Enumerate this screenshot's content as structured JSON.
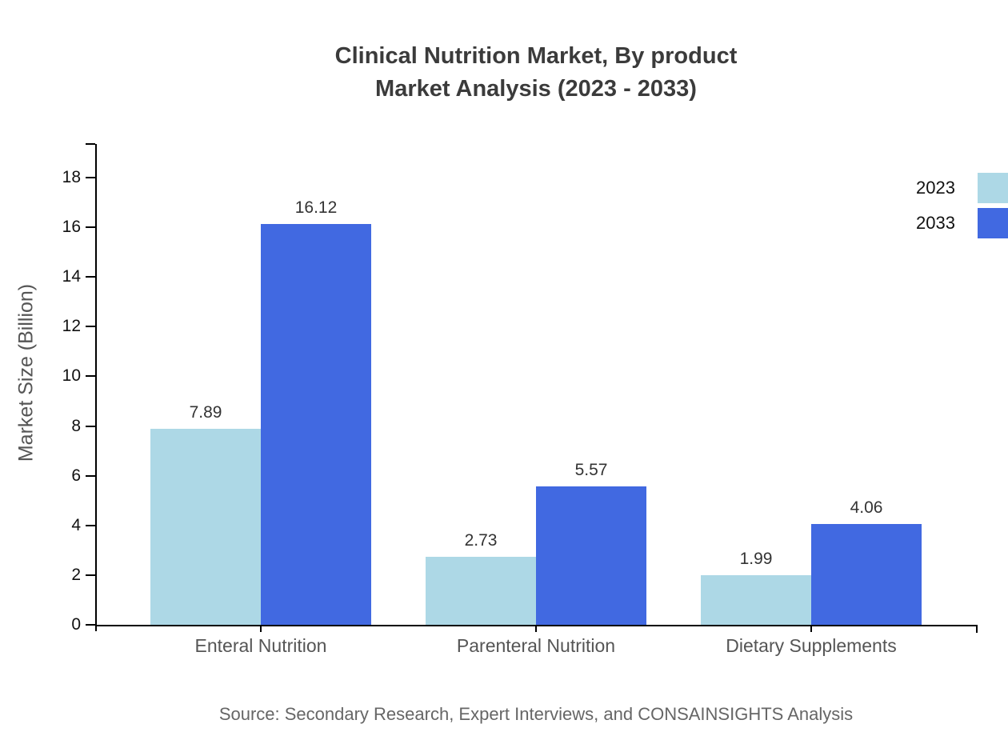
{
  "title": {
    "line1": "Clinical Nutrition Market, By product",
    "line2": "Market Analysis (2023 - 2033)"
  },
  "source": "Source: Secondary Research, Expert Interviews, and CONSAINSIGHTS Analysis",
  "chart_data": {
    "type": "bar",
    "title": "Clinical Nutrition Market, By product Market Analysis (2023 - 2033)",
    "categories": [
      "Enteral Nutrition",
      "Parenteral Nutrition",
      "Dietary Supplements"
    ],
    "series": [
      {
        "name": "2023",
        "color": "#ADD8E6",
        "values": [
          7.89,
          2.73,
          1.99
        ]
      },
      {
        "name": "2033",
        "color": "#4169E1",
        "values": [
          16.12,
          5.57,
          4.06
        ]
      }
    ],
    "xlabel": "",
    "ylabel": "Market Size (Billion)",
    "ylim": [
      0,
      18
    ],
    "yticks": [
      0,
      2,
      4,
      6,
      8,
      10,
      12,
      14,
      16,
      18
    ],
    "grid": false,
    "value_labels": true,
    "value_label_format": "2-decimals",
    "legend_position": "top-right",
    "colors": {
      "title_text": "#3b3b3b",
      "axis": "#000000",
      "tick_label_text": "#111111",
      "category_label_text": "#555555",
      "value_label_text": "#333333",
      "source_text": "#666666",
      "background": "#ffffff"
    }
  }
}
